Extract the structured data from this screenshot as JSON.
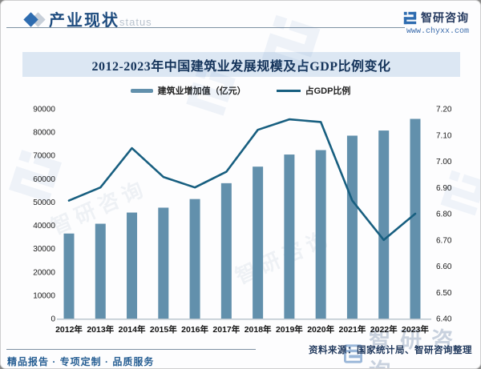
{
  "header": {
    "title": "产业现状",
    "ghost": "status",
    "brand_name": "智研咨询",
    "brand_url": "www.chyxx.com"
  },
  "chart_data": {
    "type": "bar+line",
    "title": "2012-2023年中国建筑业发展规模及占GDP比例变化",
    "categories": [
      "2012年",
      "2013年",
      "2014年",
      "2015年",
      "2016年",
      "2017年",
      "2018年",
      "2019年",
      "2020年",
      "2021年",
      "2022年",
      "2023年"
    ],
    "series": [
      {
        "name": "建筑业增加值（亿元）",
        "type": "bar",
        "axis": "left",
        "color": "#6290ac",
        "values": [
          36500,
          40700,
          45500,
          47600,
          51300,
          58100,
          65200,
          70400,
          72300,
          78500,
          80700,
          85700
        ]
      },
      {
        "name": "占GDP比例",
        "type": "line",
        "axis": "right",
        "color": "#185f80",
        "values": [
          6.85,
          6.9,
          7.05,
          6.94,
          6.9,
          6.96,
          7.12,
          7.16,
          7.15,
          6.85,
          6.7,
          6.8
        ]
      }
    ],
    "left_axis": {
      "min": 0,
      "max": 90000,
      "step": 10000,
      "ticks": [
        "0",
        "10000",
        "20000",
        "30000",
        "40000",
        "50000",
        "60000",
        "70000",
        "80000",
        "90000"
      ]
    },
    "right_axis": {
      "min": 6.4,
      "max": 7.2,
      "step": 0.1,
      "ticks": [
        "6.40",
        "6.50",
        "6.60",
        "6.70",
        "6.80",
        "6.90",
        "7.00",
        "7.10",
        "7.20"
      ]
    },
    "grid": false,
    "legend_position": "top"
  },
  "footer": {
    "left": "精品报告 · 专项定制 · 品质服务",
    "source": "资料来源：国家统计局、智研咨询整理"
  },
  "decor": {
    "watermark_text": "智研咨询"
  }
}
